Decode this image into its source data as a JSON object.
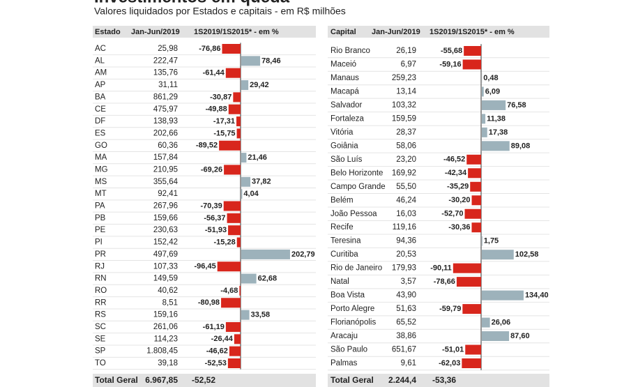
{
  "title": "Investimentos em queda",
  "subtitle": "Valores liquidados por Estados e capitais - em R$ milhões",
  "chart_data": [
    {
      "type": "bar",
      "orientation": "horizontal",
      "headers": [
        "Estado",
        "Jan-Jun/2019",
        "1S2019/1S2015* - em %"
      ],
      "categories": [
        "AC",
        "AL",
        "AM",
        "AP",
        "BA",
        "CE",
        "DF",
        "ES",
        "GO",
        "MA",
        "MG",
        "MS",
        "MT",
        "PA",
        "PB",
        "PE",
        "PI",
        "PR",
        "RJ",
        "RN",
        "RO",
        "RR",
        "RS",
        "SC",
        "SE",
        "SP",
        "TO"
      ],
      "amounts": [
        "25,98",
        "222,47",
        "135,76",
        "31,11",
        "861,29",
        "475,97",
        "138,93",
        "202,66",
        "60,36",
        "157,84",
        "210,95",
        "355,64",
        "92,41",
        "267,96",
        "159,66",
        "230,63",
        "152,42",
        "497,69",
        "107,33",
        "149,59",
        "40,62",
        "8,51",
        "159,16",
        "261,06",
        "114,23",
        "1.808,45",
        "39,18"
      ],
      "values": [
        -76.86,
        78.46,
        -61.44,
        29.42,
        -30.87,
        -49.88,
        -17.31,
        -15.75,
        -89.52,
        21.46,
        -69.26,
        37.82,
        4.04,
        -70.39,
        -56.37,
        -51.93,
        -15.28,
        202.79,
        -96.45,
        62.68,
        -4.68,
        -80.98,
        33.58,
        -61.19,
        -26.44,
        -46.62,
        -52.53
      ],
      "value_labels": [
        "-76,86",
        "78,46",
        "-61,44",
        "29,42",
        "-30,87",
        "-49,88",
        "-17,31",
        "-15,75",
        "-89,52",
        "21,46",
        "-69,26",
        "37,82",
        "4,04",
        "-70,39",
        "-56,37",
        "-51,93",
        "-15,28",
        "202,79",
        "-96,45",
        "62,68",
        "-4,68",
        "-80,98",
        "33,58",
        "-61,19",
        "-26,44",
        "-46,62",
        "-52,53"
      ],
      "negative_color": "#d8261c",
      "positive_color": "#9db2bb",
      "total": [
        "Total Geral",
        "6.967,85",
        "-52,52"
      ]
    },
    {
      "type": "bar",
      "orientation": "horizontal",
      "headers": [
        "Capital",
        "Jan-Jun/2019",
        "1S2019/1S2015* - em %"
      ],
      "categories": [
        "Rio Branco",
        "Maceió",
        "Manaus",
        "Macapá",
        "Salvador",
        "Fortaleza",
        "Vitória",
        "Goiânia",
        "São Luís",
        "Belo Horizonte",
        "Campo Grande",
        "Belém",
        "João Pessoa",
        "Recife",
        "Teresina",
        "Curitiba",
        "Rio de Janeiro",
        "Natal",
        "Boa Vista",
        "Porto Alegre",
        "Florianópolis",
        "Aracaju",
        "São Paulo",
        "Palmas"
      ],
      "amounts": [
        "26,19",
        "6,97",
        "259,23",
        "13,14",
        "103,32",
        "159,59",
        "28,37",
        "58,06",
        "23,20",
        "169,92",
        "55,50",
        "46,24",
        "16,03",
        "119,16",
        "94,36",
        "20,53",
        "179,93",
        "3,57",
        "43,90",
        "51,63",
        "65,52",
        "38,86",
        "651,67",
        "9,61"
      ],
      "values": [
        -55.68,
        -59.16,
        0.48,
        6.09,
        76.58,
        11.38,
        17.38,
        89.08,
        -46.52,
        -42.34,
        -35.29,
        -30.2,
        -52.7,
        -30.36,
        1.75,
        102.58,
        -90.11,
        -78.66,
        134.4,
        -59.79,
        26.06,
        87.6,
        -51.01,
        -62.03
      ],
      "value_labels": [
        "-55,68",
        "-59,16",
        "0,48",
        "6,09",
        "76,58",
        "11,38",
        "17,38",
        "89,08",
        "-46,52",
        "-42,34",
        "-35,29",
        "-30,20",
        "-52,70",
        "-30,36",
        "1,75",
        "102,58",
        "-90,11",
        "-78,66",
        "134,40",
        "-59,79",
        "26,06",
        "87,60",
        "-51,01",
        "-62,03"
      ],
      "negative_color": "#d8261c",
      "positive_color": "#9db2bb",
      "total": [
        "Total Geral",
        "2.244,4",
        "-53,36"
      ]
    }
  ]
}
